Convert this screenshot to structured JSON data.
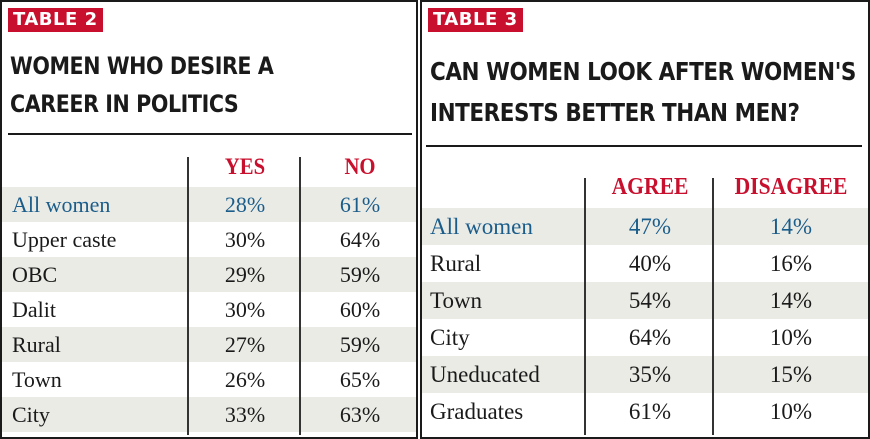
{
  "table2": {
    "tag": "TABLE 2",
    "title_line1": "WOMEN WHO DESIRE A",
    "title_line2": "CAREER IN POLITICS",
    "columns": [
      "YES",
      "NO"
    ],
    "rows": [
      {
        "label": "All women",
        "yes": "28%",
        "no": "61%"
      },
      {
        "label": "Upper caste",
        "yes": "30%",
        "no": "64%"
      },
      {
        "label": "OBC",
        "yes": "29%",
        "no": "59%"
      },
      {
        "label": "Dalit",
        "yes": "30%",
        "no": "60%"
      },
      {
        "label": "Rural",
        "yes": "27%",
        "no": "59%"
      },
      {
        "label": "Town",
        "yes": "26%",
        "no": "65%"
      },
      {
        "label": "City",
        "yes": "33%",
        "no": "63%"
      }
    ]
  },
  "table3": {
    "tag": "TABLE 3",
    "title_line1": "CAN WOMEN LOOK AFTER WOMEN'S",
    "title_line2": "INTERESTS BETTER THAN MEN?",
    "columns": [
      "AGREE",
      "DISAGREE"
    ],
    "rows": [
      {
        "label": "All women",
        "agree": "47%",
        "disagree": "14%"
      },
      {
        "label": "Rural",
        "agree": "40%",
        "disagree": "16%"
      },
      {
        "label": "Town",
        "agree": "54%",
        "disagree": "14%"
      },
      {
        "label": "City",
        "agree": "64%",
        "disagree": "10%"
      },
      {
        "label": "Uneducated",
        "agree": "35%",
        "disagree": "15%"
      },
      {
        "label": "Graduates",
        "agree": "61%",
        "disagree": "10%"
      }
    ]
  },
  "colors": {
    "tag_bg": "#c8102e",
    "header_text": "#c8102e",
    "highlight_text": "#1b5d8a",
    "shade": "#ebebe6"
  }
}
